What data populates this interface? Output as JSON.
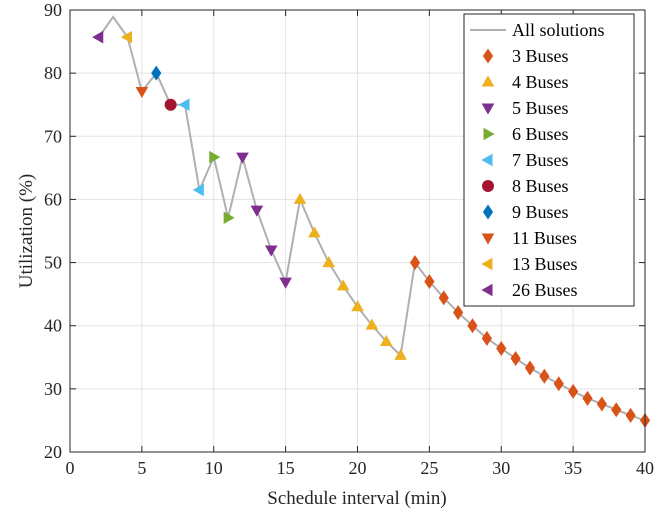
{
  "chart_data": {
    "type": "scatter",
    "title": "",
    "xlabel": "Schedule interval (min)",
    "ylabel": "Utilization (%)",
    "xlim": [
      0,
      40
    ],
    "ylim": [
      20,
      90
    ],
    "xticks": [
      "0",
      "5",
      "10",
      "15",
      "20",
      "25",
      "30",
      "35",
      "40"
    ],
    "yticks": [
      "20",
      "30",
      "40",
      "50",
      "60",
      "70",
      "80",
      "90"
    ],
    "grid": true,
    "legend_position": "top-right",
    "line_series": {
      "name": "All solutions",
      "color": "#b0b0b0",
      "x": [
        2,
        3,
        4,
        5,
        6,
        7,
        8,
        9,
        10,
        11,
        12,
        13,
        14,
        15,
        16,
        17,
        18,
        19,
        20,
        21,
        22,
        23,
        24,
        25,
        26,
        27,
        28,
        29,
        30,
        31,
        32,
        33,
        34,
        35,
        36,
        37,
        38,
        39,
        40
      ],
      "y": [
        85.7,
        88.9,
        85.7,
        77.1,
        80.0,
        75.0,
        75.0,
        61.5,
        66.7,
        57.1,
        66.7,
        58.3,
        52.0,
        46.9,
        60.0,
        54.7,
        50.0,
        46.3,
        43.0,
        40.1,
        37.5,
        35.3,
        50.0,
        47.0,
        44.4,
        42.1,
        40.0,
        38.0,
        36.4,
        34.8,
        33.3,
        32.0,
        30.8,
        29.6,
        28.5,
        27.6,
        26.7,
        25.8,
        25.0
      ]
    },
    "series": [
      {
        "name": "3 Buses",
        "marker": "diamond",
        "color": "#d95319",
        "x": [
          24,
          25,
          26,
          27,
          28,
          29,
          30,
          31,
          32,
          33,
          34,
          35,
          36,
          37,
          38,
          39,
          40
        ],
        "y": [
          50.0,
          47.0,
          44.4,
          42.1,
          40.0,
          38.0,
          36.4,
          34.8,
          33.3,
          32.0,
          30.8,
          29.6,
          28.5,
          27.6,
          26.7,
          25.8,
          25.0
        ]
      },
      {
        "name": "4 Buses",
        "marker": "triangle-up",
        "color": "#edb120",
        "x": [
          16,
          17,
          18,
          19,
          20,
          21,
          22,
          23
        ],
        "y": [
          60.0,
          54.7,
          50.0,
          46.3,
          43.0,
          40.1,
          37.5,
          35.3
        ]
      },
      {
        "name": "5 Buses",
        "marker": "triangle-down",
        "color": "#7e2f8e",
        "x": [
          12,
          13,
          14,
          15
        ],
        "y": [
          66.7,
          58.3,
          52.0,
          46.9
        ]
      },
      {
        "name": "6 Buses",
        "marker": "triangle-right",
        "color": "#77ac30",
        "x": [
          10,
          11
        ],
        "y": [
          66.7,
          57.1
        ]
      },
      {
        "name": "7 Buses",
        "marker": "triangle-left",
        "color": "#4dbeee",
        "x": [
          8,
          9
        ],
        "y": [
          75.0,
          61.5
        ]
      },
      {
        "name": "8 Buses",
        "marker": "circle",
        "color": "#a2142f",
        "x": [
          7
        ],
        "y": [
          75.0
        ]
      },
      {
        "name": "9 Buses",
        "marker": "diamond",
        "color": "#0072bd",
        "x": [
          6
        ],
        "y": [
          80.0
        ]
      },
      {
        "name": "11 Buses",
        "marker": "triangle-down",
        "color": "#d95319",
        "x": [
          5
        ],
        "y": [
          77.1
        ]
      },
      {
        "name": "13 Buses",
        "marker": "triangle-left",
        "color": "#edb120",
        "x": [
          4
        ],
        "y": [
          85.7
        ]
      },
      {
        "name": "26 Buses",
        "marker": "triangle-left",
        "color": "#7e2f8e",
        "x": [
          2
        ],
        "y": [
          85.7
        ]
      }
    ]
  }
}
